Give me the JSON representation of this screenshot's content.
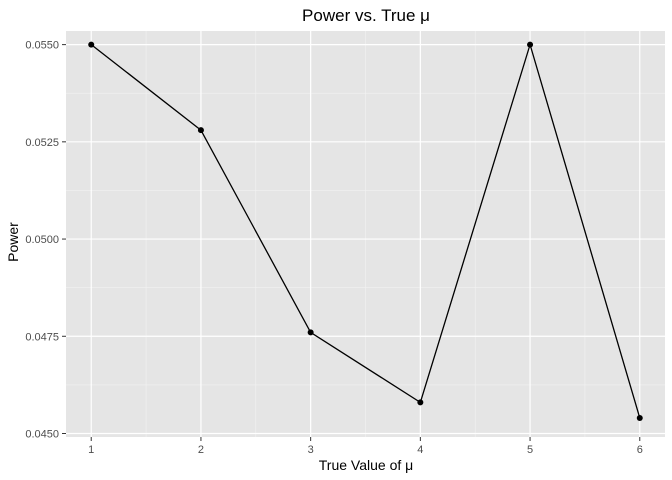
{
  "colors": {
    "panel_background": "#e5e5e5",
    "grid_major": "#ffffff",
    "grid_minor": "#f2f2f2",
    "line": "#000000",
    "point": "#000000",
    "tick": "#333333"
  },
  "chart_data": {
    "type": "line",
    "title": "Power vs. True μ",
    "xlabel": "True Value of μ",
    "ylabel": "Power",
    "x": [
      1,
      2,
      3,
      4,
      5,
      6
    ],
    "series": [
      {
        "values": [
          0.055,
          0.0528,
          0.0476,
          0.0458,
          0.055,
          0.0454
        ]
      }
    ],
    "xlim": [
      0.77,
      6.23
    ],
    "ylim": [
      0.04491,
      0.05535
    ],
    "x_ticks": [
      1,
      2,
      3,
      4,
      5,
      6
    ],
    "x_tick_labels": [
      "1",
      "2",
      "3",
      "4",
      "5",
      "6"
    ],
    "y_ticks": [
      0.045,
      0.0475,
      0.05,
      0.0525,
      0.055
    ],
    "y_tick_labels": [
      "0.0450",
      "0.0475",
      "0.0500",
      "0.0525",
      "0.0550"
    ],
    "markers": true,
    "grid": true,
    "legend": "none"
  }
}
